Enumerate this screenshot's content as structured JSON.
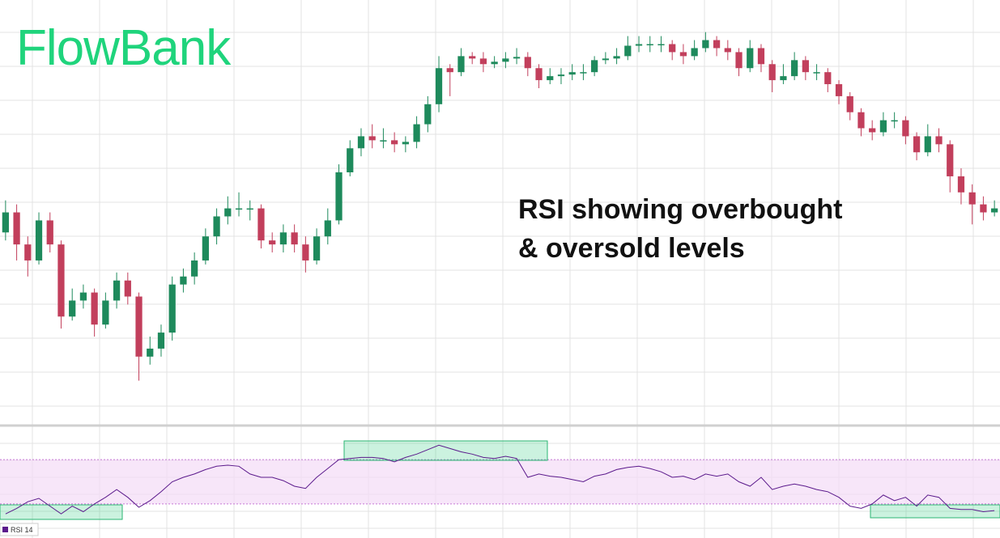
{
  "logo": "FlowBank",
  "chart_data": [
    {
      "type": "candlestick",
      "annotation": [
        "RSI showing overbought",
        "& oversold levels"
      ],
      "up_color": "#1e8a5c",
      "down_color": "#c23f5c",
      "ylim": [
        0,
        105
      ],
      "open": [
        48,
        53,
        45,
        41,
        51,
        45,
        27,
        31,
        33,
        25,
        31,
        36,
        32,
        17,
        19,
        23,
        35,
        37,
        41,
        47,
        52,
        54,
        54,
        54,
        46,
        45,
        48,
        45,
        41,
        47,
        51,
        63,
        69,
        72,
        71,
        71,
        70,
        70.6,
        75,
        80,
        89,
        88,
        92,
        91.4,
        90,
        90.6,
        91.4,
        91.8,
        89,
        86,
        87,
        87.4,
        88,
        88,
        91,
        91.4,
        92,
        94.6,
        95,
        95,
        95,
        93,
        92,
        94,
        96,
        94,
        93,
        89,
        94,
        90,
        86,
        87,
        91,
        88,
        88,
        85,
        82,
        78,
        74,
        73,
        76,
        76,
        72,
        68,
        72,
        70,
        62,
        58,
        55,
        53
      ],
      "high": [
        56,
        55,
        47,
        53,
        53,
        46,
        34,
        35,
        34,
        33,
        38,
        38,
        33,
        22,
        25,
        37,
        39,
        43,
        49,
        54,
        57,
        58,
        56,
        55,
        48,
        50,
        50,
        47,
        49,
        54,
        65,
        71,
        74,
        75,
        74,
        73,
        72,
        77,
        82,
        92,
        90,
        94,
        93,
        93,
        92,
        93,
        94,
        93,
        90,
        89,
        89,
        90,
        90,
        92,
        93,
        94,
        97,
        97,
        97,
        97,
        96,
        95,
        96,
        98,
        97,
        96,
        94,
        96,
        95,
        91,
        90,
        93,
        92,
        90,
        89,
        86,
        83,
        79,
        76,
        78,
        78,
        77,
        73,
        75,
        74,
        71,
        64,
        60,
        57,
        56
      ],
      "low": [
        46,
        41,
        37,
        40,
        43,
        24,
        26,
        29,
        22,
        24,
        29,
        30,
        11,
        15,
        17,
        21,
        33,
        35,
        40,
        45,
        50,
        52,
        51,
        44,
        43,
        43,
        43,
        38,
        40,
        45,
        50,
        62,
        67,
        69,
        69,
        68,
        68,
        69,
        73,
        78,
        82,
        87,
        90,
        88,
        89,
        89,
        90,
        87,
        84,
        85,
        85,
        86,
        86,
        87,
        90,
        90,
        91,
        93,
        93,
        93,
        91,
        90,
        91,
        93,
        92,
        91,
        87,
        88,
        88,
        83,
        85,
        86,
        86,
        86,
        83,
        80,
        76,
        72,
        71,
        72,
        74,
        70,
        66,
        67,
        68,
        58,
        55,
        50,
        51,
        52
      ],
      "close": [
        53,
        45,
        41,
        51,
        45,
        27,
        31,
        33,
        25,
        31,
        36,
        32,
        17,
        19,
        23,
        35,
        37,
        41,
        47,
        52,
        54,
        54,
        54,
        46,
        45,
        48,
        45,
        41,
        47,
        51,
        63,
        69,
        72,
        71,
        71,
        70,
        70.6,
        75,
        80,
        89,
        88,
        92,
        91.4,
        90,
        90.6,
        91.4,
        91.8,
        89,
        86,
        87,
        87.4,
        88,
        88,
        91,
        91.4,
        92,
        94.6,
        95,
        95,
        95,
        93,
        92,
        94,
        96,
        94,
        93,
        89,
        94,
        90,
        86,
        87,
        91,
        88,
        88,
        85,
        82,
        78,
        74,
        73,
        76,
        76,
        72,
        68,
        72,
        70,
        62,
        58,
        55,
        53,
        54
      ]
    },
    {
      "type": "line",
      "ylim": [
        0,
        100
      ],
      "levels": [
        30,
        70
      ],
      "series": [
        {
          "name": "RSI 14",
          "color": "#5b1a8c",
          "values": [
            21,
            26,
            32,
            35,
            28,
            21,
            28,
            23,
            30,
            36,
            43,
            36,
            27,
            33,
            41,
            50,
            54,
            57,
            61,
            64,
            65,
            64,
            57,
            54,
            54,
            51,
            46,
            44,
            54,
            62,
            70,
            71,
            72,
            72,
            71,
            68,
            72,
            75,
            79,
            83,
            80,
            77,
            75,
            72,
            71,
            73,
            71,
            54,
            57,
            55,
            54,
            52,
            50,
            55,
            57,
            61,
            63,
            64,
            62,
            59,
            54,
            55,
            52,
            57,
            55,
            57,
            50,
            46,
            54,
            43,
            46,
            48,
            46,
            43,
            41,
            36,
            28,
            26,
            30,
            38,
            33,
            36,
            28,
            38,
            36,
            26,
            25,
            25,
            23,
            24
          ]
        }
      ]
    }
  ]
}
